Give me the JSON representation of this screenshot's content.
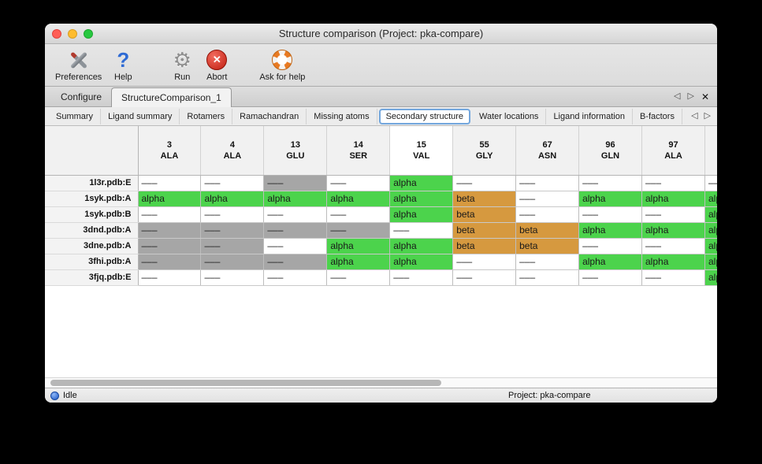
{
  "window": {
    "title": "Structure comparison (Project: pka-compare)"
  },
  "toolbar": {
    "items": [
      {
        "label": "Preferences",
        "icon": "tools",
        "glyph": ""
      },
      {
        "label": "Help",
        "icon": "question",
        "glyph": "?"
      },
      {
        "label": "Run",
        "icon": "gear",
        "glyph": "⚙"
      },
      {
        "label": "Abort",
        "icon": "abort",
        "glyph": "✕"
      },
      {
        "label": "Ask for help",
        "icon": "lifering",
        "glyph": ""
      }
    ]
  },
  "tabs": {
    "items": [
      {
        "label": "Configure",
        "active": false
      },
      {
        "label": "StructureComparison_1",
        "active": true
      }
    ],
    "nav": {
      "left": "◁",
      "right": "▷",
      "close": "✕"
    }
  },
  "subtabs": {
    "items": [
      "Summary",
      "Ligand summary",
      "Rotamers",
      "Ramachandran",
      "Missing atoms",
      "Secondary structure",
      "Water locations",
      "Ligand information",
      "B-factors"
    ],
    "selected_index": 5,
    "nav": {
      "left": "◁",
      "right": "▷"
    }
  },
  "table": {
    "columns": [
      {
        "number": "3",
        "residue": "ALA"
      },
      {
        "number": "4",
        "residue": "ALA"
      },
      {
        "number": "13",
        "residue": "GLU"
      },
      {
        "number": "14",
        "residue": "SER"
      },
      {
        "number": "15",
        "residue": "VAL",
        "highlighted": true
      },
      {
        "number": "55",
        "residue": "GLY"
      },
      {
        "number": "67",
        "residue": "ASN"
      },
      {
        "number": "96",
        "residue": "GLN"
      },
      {
        "number": "97",
        "residue": "ALA"
      },
      {
        "number": "",
        "residue": ""
      }
    ],
    "cell_types": {
      "none": {
        "text": "–––",
        "bg": "#ffffff"
      },
      "missing": {
        "text": "–––",
        "bg": "#a6a6a6"
      },
      "alpha": {
        "text": "alpha",
        "bg": "#4cd34c"
      },
      "beta": {
        "text": "beta",
        "bg": "#d6993f"
      }
    },
    "rows": [
      {
        "name": "1l3r.pdb:E",
        "cells": [
          "none",
          "none",
          "missing",
          "none",
          "alpha",
          "none",
          "none",
          "none",
          "none",
          "none"
        ]
      },
      {
        "name": "1syk.pdb:A",
        "cells": [
          "alpha",
          "alpha",
          "alpha",
          "alpha",
          "alpha",
          "beta",
          "none",
          "alpha",
          "alpha",
          "alpha"
        ]
      },
      {
        "name": "1syk.pdb:B",
        "cells": [
          "none",
          "none",
          "none",
          "none",
          "alpha",
          "beta",
          "none",
          "none",
          "none",
          "alpha"
        ]
      },
      {
        "name": "3dnd.pdb:A",
        "cells": [
          "missing",
          "missing",
          "missing",
          "missing",
          "none",
          "beta",
          "beta",
          "alpha",
          "alpha",
          "alpha"
        ]
      },
      {
        "name": "3dne.pdb:A",
        "cells": [
          "missing",
          "missing",
          "none",
          "alpha",
          "alpha",
          "beta",
          "beta",
          "none",
          "none",
          "alpha"
        ]
      },
      {
        "name": "3fhi.pdb:A",
        "cells": [
          "missing",
          "missing",
          "missing",
          "alpha",
          "alpha",
          "none",
          "none",
          "alpha",
          "alpha",
          "alpha"
        ]
      },
      {
        "name": "3fjq.pdb:E",
        "cells": [
          "none",
          "none",
          "none",
          "none",
          "none",
          "none",
          "none",
          "none",
          "none",
          "alpha"
        ]
      }
    ]
  },
  "statusbar": {
    "status": "Idle",
    "project": "Project: pka-compare"
  }
}
